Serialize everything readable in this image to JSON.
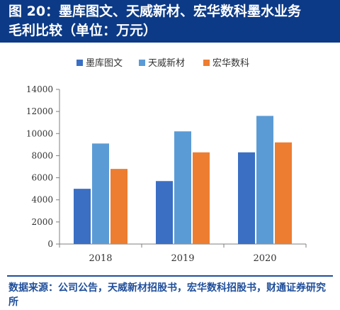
{
  "header": {
    "title_line1": "图 20：墨库图文、天威新材、宏华数科墨水业务",
    "title_line2": "毛利比较（单位：万元）"
  },
  "footer": {
    "source": "数据来源：公司公告，天威新材招股书，宏华数科招股书，财通证券研究所"
  },
  "chart_data": {
    "type": "bar",
    "title": "",
    "xlabel": "",
    "ylabel": "",
    "categories": [
      "2018",
      "2019",
      "2020"
    ],
    "series": [
      {
        "name": "墨库图文",
        "color": "#3a6fc4",
        "values": [
          5000,
          5700,
          8300
        ]
      },
      {
        "name": "天威新材",
        "color": "#5b9bd5",
        "values": [
          9100,
          10200,
          11600
        ]
      },
      {
        "name": "宏华数科",
        "color": "#ed7d31",
        "values": [
          6800,
          8300,
          9200
        ]
      }
    ],
    "ylim": [
      0,
      14000
    ],
    "yticks": [
      0,
      2000,
      4000,
      6000,
      8000,
      10000,
      12000,
      14000
    ],
    "legend_position": "top",
    "grid": false
  }
}
